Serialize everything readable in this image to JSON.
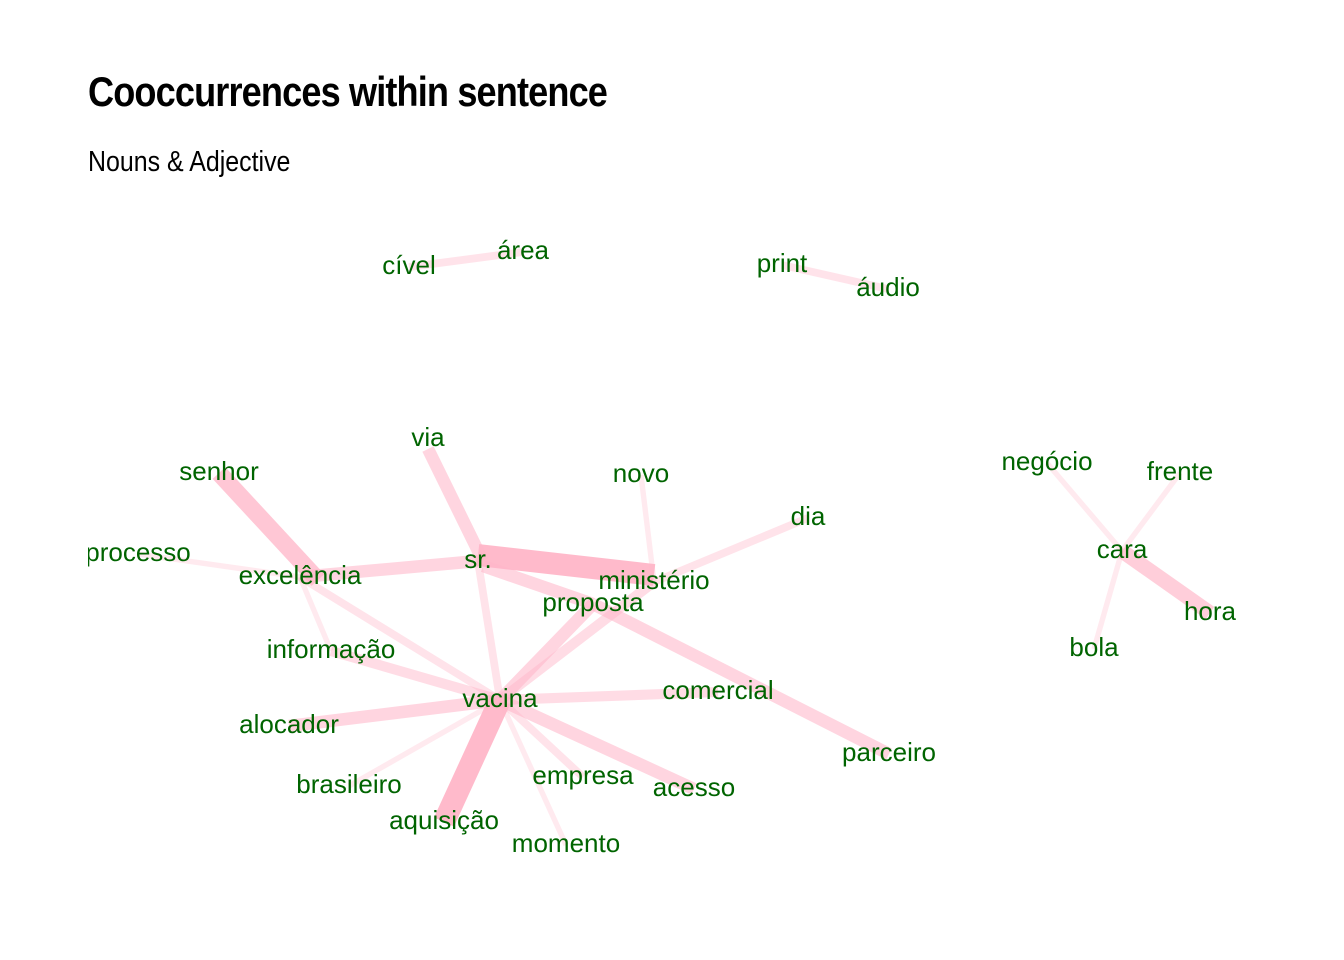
{
  "title": "Cooccurrences within sentence",
  "subtitle": "Nouns & Adjective",
  "colors": {
    "edge": "#ffb6c8",
    "label": "#006400",
    "background": "#ffffff"
  },
  "nodes": [
    {
      "id": "cível",
      "label": "cível"
    },
    {
      "id": "área",
      "label": "área"
    },
    {
      "id": "print",
      "label": "print"
    },
    {
      "id": "áudio",
      "label": "áudio"
    },
    {
      "id": "via",
      "label": "via"
    },
    {
      "id": "senhor",
      "label": "senhor"
    },
    {
      "id": "novo",
      "label": "novo"
    },
    {
      "id": "negócio",
      "label": "negócio"
    },
    {
      "id": "frente",
      "label": "frente"
    },
    {
      "id": "dia",
      "label": "dia"
    },
    {
      "id": "processo",
      "label": "processo"
    },
    {
      "id": "sr.",
      "label": "sr."
    },
    {
      "id": "excelência",
      "label": "excelência"
    },
    {
      "id": "ministério",
      "label": "ministério"
    },
    {
      "id": "cara",
      "label": "cara"
    },
    {
      "id": "proposta",
      "label": "proposta"
    },
    {
      "id": "hora",
      "label": "hora"
    },
    {
      "id": "informação",
      "label": "informação"
    },
    {
      "id": "bola",
      "label": "bola"
    },
    {
      "id": "comercial",
      "label": "comercial"
    },
    {
      "id": "vacina",
      "label": "vacina"
    },
    {
      "id": "alocador",
      "label": "alocador"
    },
    {
      "id": "parceiro",
      "label": "parceiro"
    },
    {
      "id": "empresa",
      "label": "empresa"
    },
    {
      "id": "brasileiro",
      "label": "brasileiro"
    },
    {
      "id": "acesso",
      "label": "acesso"
    },
    {
      "id": "aquisição",
      "label": "aquisição"
    },
    {
      "id": "momento",
      "label": "momento"
    }
  ],
  "edges": [
    {
      "source": "cível",
      "target": "área",
      "weight": 2
    },
    {
      "source": "print",
      "target": "áudio",
      "weight": 2
    },
    {
      "source": "via",
      "target": "sr.",
      "weight": 4
    },
    {
      "source": "senhor",
      "target": "excelência",
      "weight": 6
    },
    {
      "source": "excelência",
      "target": "sr.",
      "weight": 4
    },
    {
      "source": "processo",
      "target": "excelência",
      "weight": 1
    },
    {
      "source": "sr.",
      "target": "ministério",
      "weight": 8
    },
    {
      "source": "sr.",
      "target": "proposta",
      "weight": 4
    },
    {
      "source": "sr.",
      "target": "vacina",
      "weight": 2
    },
    {
      "source": "novo",
      "target": "ministério",
      "weight": 1
    },
    {
      "source": "dia",
      "target": "ministério",
      "weight": 2
    },
    {
      "source": "ministério",
      "target": "vacina",
      "weight": 3
    },
    {
      "source": "proposta",
      "target": "vacina",
      "weight": 4
    },
    {
      "source": "proposta",
      "target": "parceiro",
      "weight": 4
    },
    {
      "source": "excelência",
      "target": "vacina",
      "weight": 2
    },
    {
      "source": "excelência",
      "target": "informação",
      "weight": 1
    },
    {
      "source": "informação",
      "target": "vacina",
      "weight": 3
    },
    {
      "source": "vacina",
      "target": "comercial",
      "weight": 3
    },
    {
      "source": "vacina",
      "target": "alocador",
      "weight": 4
    },
    {
      "source": "vacina",
      "target": "aquisição",
      "weight": 8
    },
    {
      "source": "vacina",
      "target": "acesso",
      "weight": 4
    },
    {
      "source": "vacina",
      "target": "empresa",
      "weight": 2
    },
    {
      "source": "vacina",
      "target": "brasileiro",
      "weight": 1
    },
    {
      "source": "vacina",
      "target": "momento",
      "weight": 1
    },
    {
      "source": "negócio",
      "target": "cara",
      "weight": 1
    },
    {
      "source": "frente",
      "target": "cara",
      "weight": 1
    },
    {
      "source": "cara",
      "target": "hora",
      "weight": 5
    },
    {
      "source": "cara",
      "target": "bola",
      "weight": 1
    }
  ]
}
